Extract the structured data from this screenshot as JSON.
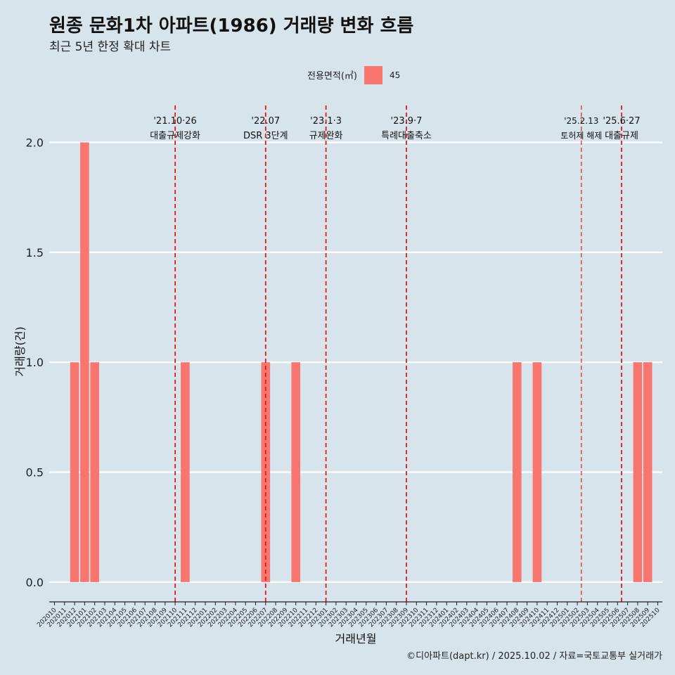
{
  "header": {
    "title": "원종 문화1차 아파트(1986) 거래량 변화 흐름",
    "subtitle": "최근 5년 한정 확대 차트"
  },
  "legend": {
    "title": "전용면적(㎡)",
    "entries": [
      {
        "label": "45",
        "color": "#f8766d"
      }
    ]
  },
  "caption": "©디아파트(dapt.kr) / 2025.10.02 / 자료=국토교통부 실거래가",
  "colors": {
    "background": "#d7e4ec",
    "bar": "#f8766d",
    "event_line": "#e31a1c",
    "grid": "#ffffff"
  },
  "chart_data": {
    "type": "bar",
    "xlabel": "거래년월",
    "ylabel": "거래량(건)",
    "ylim": [
      -0.09,
      2.2
    ],
    "yticks": [
      0.0,
      0.5,
      1.0,
      1.5,
      2.0
    ],
    "ytick_labels": [
      "0.0",
      "0.5",
      "1.0",
      "1.5",
      "2.0"
    ],
    "categories": [
      "202010",
      "202011",
      "202012",
      "202101",
      "202102",
      "202103",
      "202104",
      "202105",
      "202106",
      "202107",
      "202108",
      "202109",
      "202110",
      "202111",
      "202112",
      "202201",
      "202202",
      "202203",
      "202204",
      "202205",
      "202206",
      "202207",
      "202208",
      "202209",
      "202210",
      "202211",
      "202212",
      "202301",
      "202302",
      "202303",
      "202304",
      "202305",
      "202306",
      "202307",
      "202308",
      "202309",
      "202310",
      "202311",
      "202312",
      "202401",
      "202402",
      "202403",
      "202404",
      "202405",
      "202406",
      "202407",
      "202408",
      "202409",
      "202410",
      "202411",
      "202412",
      "202501",
      "202502",
      "202503",
      "202504",
      "202505",
      "202506",
      "202507",
      "202508",
      "202509",
      "202510"
    ],
    "series": [
      {
        "name": "45",
        "values": [
          0,
          0,
          1,
          2,
          1,
          0,
          0,
          0,
          0,
          0,
          0,
          0,
          0,
          1,
          0,
          0,
          0,
          0,
          0,
          0,
          0,
          1,
          0,
          0,
          1,
          0,
          0,
          0,
          0,
          0,
          0,
          0,
          0,
          0,
          0,
          0,
          0,
          0,
          0,
          0,
          0,
          0,
          0,
          0,
          0,
          0,
          1,
          0,
          1,
          0,
          0,
          0,
          0,
          0,
          0,
          0,
          0,
          0,
          1,
          1,
          0
        ]
      }
    ],
    "events": [
      {
        "date_label": "'21.10·26",
        "text": "대출규제강화",
        "position": 12.0
      },
      {
        "date_label": "'22.07",
        "text": "DSR 3단계",
        "position": 21.0
      },
      {
        "date_label": "'23.1·3",
        "text": "규제완화",
        "position": 27.0
      },
      {
        "date_label": "'23.9·7",
        "text": "특례대출축소",
        "position": 35.0
      },
      {
        "date_label": "'25.2.13",
        "text": "토허제 해제",
        "position": 52.4
      },
      {
        "date_label": "'25.6·27",
        "text": "대출규제",
        "position": 56.4
      }
    ]
  }
}
